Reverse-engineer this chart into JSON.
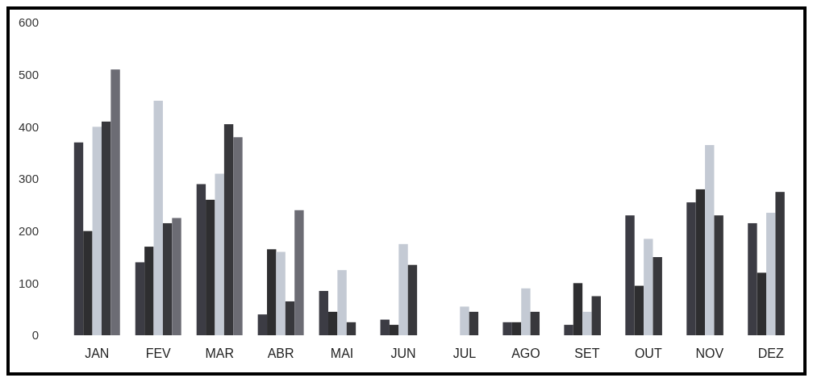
{
  "chart_data": {
    "type": "bar",
    "categories": [
      "JAN",
      "FEV",
      "MAR",
      "ABR",
      "MAI",
      "JUN",
      "JUL",
      "AGO",
      "SET",
      "OUT",
      "NOV",
      "DEZ"
    ],
    "series": [
      {
        "color": "#3c3c44",
        "values": [
          370,
          140,
          290,
          40,
          85,
          30,
          0,
          25,
          20,
          230,
          255,
          215
        ]
      },
      {
        "color": "#2e2e30",
        "values": [
          200,
          170,
          260,
          165,
          45,
          20,
          null,
          25,
          100,
          95,
          280,
          120
        ]
      },
      {
        "color": "#c4cad4",
        "values": [
          400,
          450,
          310,
          160,
          125,
          175,
          55,
          90,
          45,
          185,
          365,
          235
        ]
      },
      {
        "color": "#38383c",
        "values": [
          410,
          215,
          405,
          65,
          25,
          135,
          45,
          45,
          75,
          150,
          230,
          275
        ]
      },
      {
        "color": "#6c6c74",
        "values": [
          510,
          225,
          380,
          240,
          null,
          null,
          null,
          null,
          null,
          null,
          null,
          null
        ]
      }
    ],
    "ylim": [
      0,
      600
    ],
    "yticks": [
      0,
      100,
      200,
      300,
      400,
      500,
      600
    ],
    "grid": false
  }
}
